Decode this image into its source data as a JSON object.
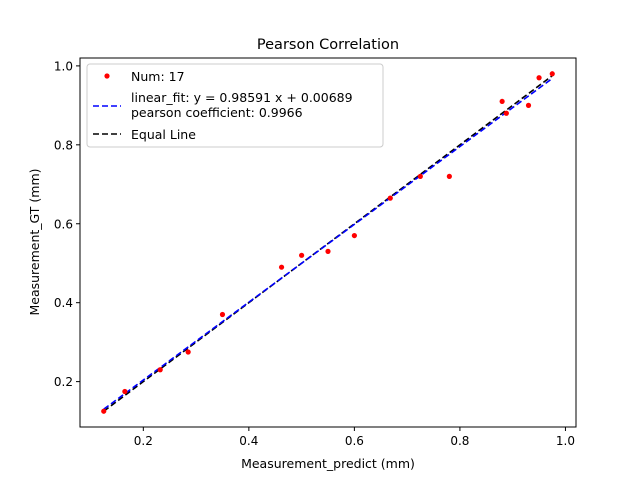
{
  "chart_data": {
    "type": "scatter",
    "title": "Pearson Correlation",
    "xlabel": "Measurement_predict (mm)",
    "ylabel": "Measurement_GT (mm)",
    "xlim": [
      0.08,
      1.02
    ],
    "ylim": [
      0.085,
      1.02
    ],
    "xticks": [
      0.2,
      0.4,
      0.6,
      0.8,
      1.0
    ],
    "xtick_labels": [
      "0.2",
      "0.4",
      "0.6",
      "0.8",
      "1.0"
    ],
    "yticks": [
      0.2,
      0.4,
      0.6,
      0.8,
      1.0
    ],
    "ytick_labels": [
      "0.2",
      "0.4",
      "0.6",
      "0.8",
      "1.0"
    ],
    "grid": false,
    "legend_position": "top-left",
    "points": {
      "name": "Num: 17",
      "color": "#ff0000",
      "x": [
        0.125,
        0.165,
        0.232,
        0.285,
        0.35,
        0.462,
        0.5,
        0.55,
        0.6,
        0.668,
        0.725,
        0.78,
        0.88,
        0.888,
        0.93,
        0.95,
        0.975
      ],
      "y": [
        0.125,
        0.175,
        0.23,
        0.275,
        0.37,
        0.49,
        0.52,
        0.53,
        0.57,
        0.665,
        0.72,
        0.72,
        0.91,
        0.88,
        0.9,
        0.97,
        0.98
      ]
    },
    "fit_line": {
      "name_line1": "linear_fit: y = 0.98591 x + 0.00689",
      "name_line2": "pearson coefficient: 0.9966",
      "color": "#0000ff",
      "slope": 0.98591,
      "intercept": 0.00689,
      "x_range": [
        0.125,
        0.975
      ]
    },
    "equal_line": {
      "name": "Equal Line",
      "color": "#000000",
      "x_range": [
        0.125,
        0.975
      ]
    }
  }
}
